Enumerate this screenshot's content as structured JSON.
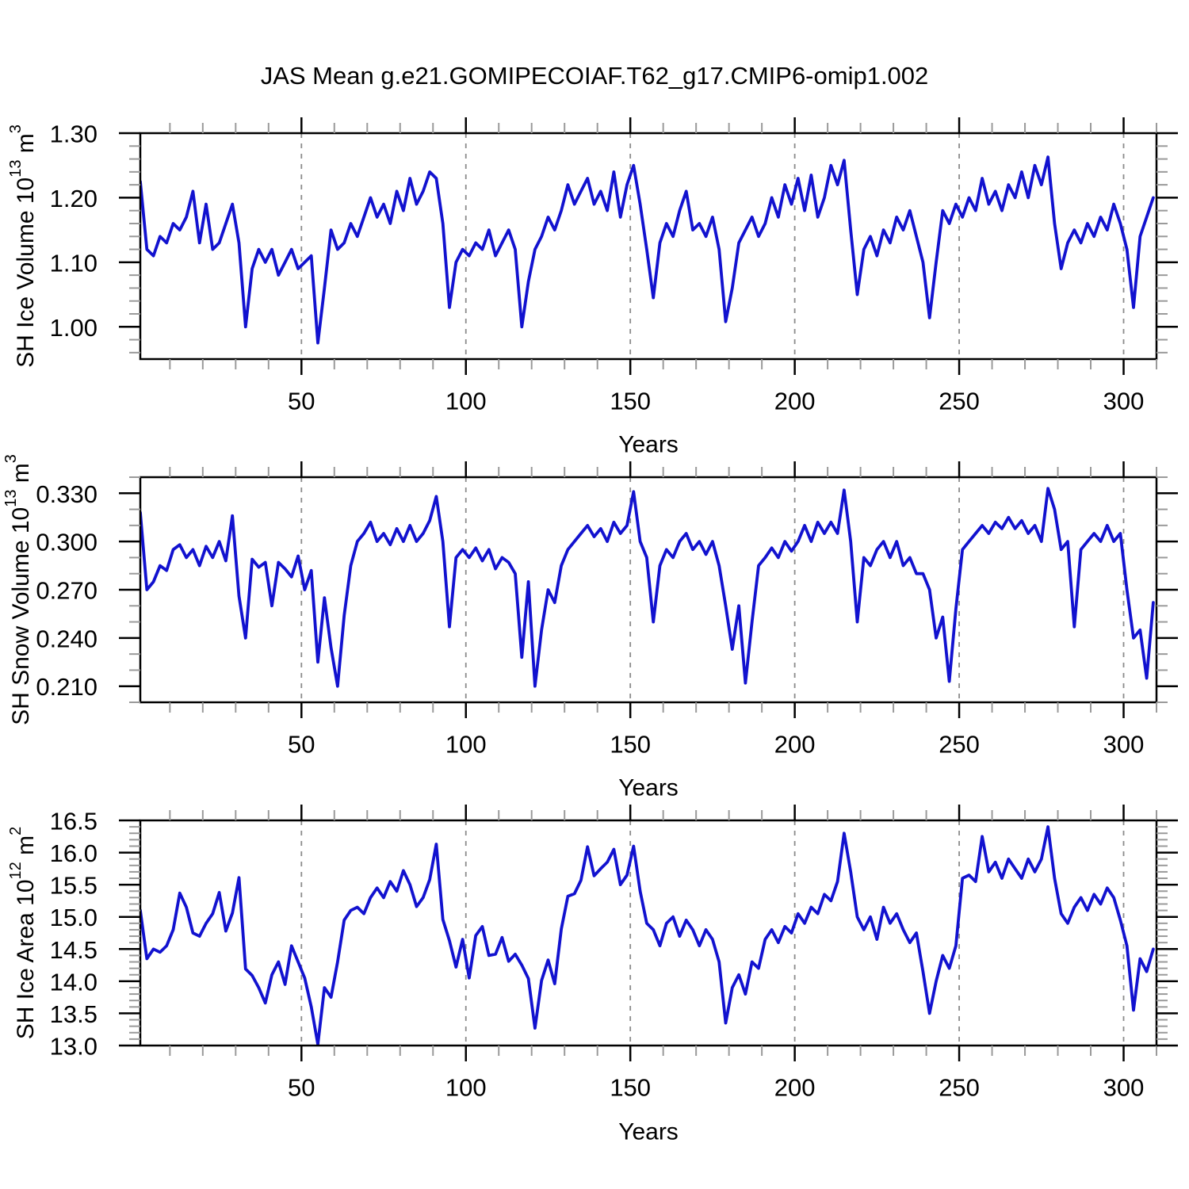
{
  "title": "JAS Mean g.e21.GOMIPECOIAF.T62_g17.CMIP6-omip1.002",
  "colors": {
    "line": "#1212CF",
    "frame": "#000000",
    "grid": "#8b8b8b",
    "minor_tick": "#9a9a9a",
    "major_tick": "#000000",
    "text": "#000000",
    "background": "#ffffff"
  },
  "chart_data": [
    {
      "type": "line",
      "title": "",
      "ylabel": "SH Ice Volume 10^13 m^3",
      "ylabel_parts": [
        [
          "t",
          "SH Ice Volume 10"
        ],
        [
          "s",
          "13"
        ],
        [
          "t",
          " m"
        ],
        [
          "s",
          "3"
        ]
      ],
      "xlabel": "Years",
      "xlim": [
        1,
        310
      ],
      "ylim": [
        0.95,
        1.3
      ],
      "yticks": {
        "major": [
          1.0,
          1.1,
          1.2,
          1.3
        ],
        "labels": [
          "1.00",
          "1.10",
          "1.20",
          "1.30"
        ],
        "minor_step": 0.02
      },
      "xticks": {
        "major": [
          50,
          100,
          150,
          200,
          250,
          300
        ],
        "labels": [
          "50",
          "100",
          "150",
          "200",
          "250",
          "300"
        ],
        "minor_step": 10
      },
      "grid": "vertical-dashed",
      "legend": "none",
      "x_start": 1,
      "x_step": 2,
      "values": [
        1.225,
        1.12,
        1.11,
        1.14,
        1.13,
        1.16,
        1.15,
        1.17,
        1.21,
        1.13,
        1.19,
        1.12,
        1.13,
        1.16,
        1.19,
        1.13,
        1.0,
        1.09,
        1.12,
        1.1,
        1.12,
        1.08,
        1.1,
        1.12,
        1.09,
        1.1,
        1.11,
        0.975,
        1.06,
        1.15,
        1.12,
        1.13,
        1.16,
        1.14,
        1.17,
        1.2,
        1.17,
        1.19,
        1.16,
        1.21,
        1.18,
        1.23,
        1.19,
        1.21,
        1.24,
        1.23,
        1.16,
        1.03,
        1.1,
        1.12,
        1.11,
        1.13,
        1.12,
        1.15,
        1.11,
        1.13,
        1.15,
        1.12,
        1.0,
        1.07,
        1.12,
        1.14,
        1.17,
        1.15,
        1.18,
        1.22,
        1.19,
        1.21,
        1.23,
        1.19,
        1.21,
        1.18,
        1.24,
        1.17,
        1.22,
        1.25,
        1.19,
        1.12,
        1.045,
        1.13,
        1.16,
        1.14,
        1.18,
        1.21,
        1.15,
        1.16,
        1.14,
        1.17,
        1.12,
        1.008,
        1.06,
        1.13,
        1.15,
        1.17,
        1.14,
        1.16,
        1.2,
        1.17,
        1.22,
        1.19,
        1.23,
        1.18,
        1.235,
        1.17,
        1.2,
        1.25,
        1.22,
        1.258,
        1.15,
        1.05,
        1.12,
        1.14,
        1.11,
        1.15,
        1.13,
        1.17,
        1.15,
        1.18,
        1.14,
        1.1,
        1.014,
        1.1,
        1.18,
        1.16,
        1.19,
        1.17,
        1.2,
        1.18,
        1.23,
        1.19,
        1.21,
        1.18,
        1.22,
        1.2,
        1.24,
        1.2,
        1.25,
        1.22,
        1.263,
        1.16,
        1.09,
        1.13,
        1.15,
        1.13,
        1.16,
        1.14,
        1.17,
        1.15,
        1.19,
        1.16,
        1.12,
        1.03,
        1.14,
        1.17,
        1.2
      ]
    },
    {
      "type": "line",
      "title": "",
      "ylabel": "SH Snow Volume 10^13 m^3",
      "ylabel_parts": [
        [
          "t",
          "SH Snow Volume 10"
        ],
        [
          "s",
          "13"
        ],
        [
          "t",
          " m"
        ],
        [
          "s",
          "3"
        ]
      ],
      "xlabel": "Years",
      "xlim": [
        1,
        310
      ],
      "ylim": [
        0.2,
        0.34
      ],
      "yticks": {
        "major": [
          0.21,
          0.24,
          0.27,
          0.3,
          0.33
        ],
        "labels": [
          "0.210",
          "0.240",
          "0.270",
          "0.300",
          "0.330"
        ],
        "minor_step": 0.01
      },
      "xticks": {
        "major": [
          50,
          100,
          150,
          200,
          250,
          300
        ],
        "labels": [
          "50",
          "100",
          "150",
          "200",
          "250",
          "300"
        ],
        "minor_step": 10
      },
      "grid": "vertical-dashed",
      "legend": "none",
      "x_start": 1,
      "x_step": 2,
      "values": [
        0.318,
        0.27,
        0.275,
        0.285,
        0.282,
        0.295,
        0.298,
        0.29,
        0.295,
        0.285,
        0.297,
        0.29,
        0.3,
        0.288,
        0.316,
        0.266,
        0.24,
        0.289,
        0.284,
        0.287,
        0.26,
        0.287,
        0.283,
        0.278,
        0.291,
        0.27,
        0.282,
        0.225,
        0.265,
        0.234,
        0.21,
        0.254,
        0.285,
        0.3,
        0.305,
        0.312,
        0.3,
        0.305,
        0.298,
        0.308,
        0.3,
        0.31,
        0.3,
        0.305,
        0.313,
        0.328,
        0.3,
        0.247,
        0.29,
        0.295,
        0.29,
        0.296,
        0.288,
        0.295,
        0.283,
        0.29,
        0.287,
        0.28,
        0.228,
        0.275,
        0.21,
        0.245,
        0.27,
        0.262,
        0.285,
        0.295,
        0.3,
        0.305,
        0.31,
        0.303,
        0.308,
        0.3,
        0.312,
        0.305,
        0.31,
        0.331,
        0.3,
        0.29,
        0.25,
        0.285,
        0.295,
        0.29,
        0.3,
        0.305,
        0.295,
        0.3,
        0.292,
        0.3,
        0.285,
        0.26,
        0.233,
        0.26,
        0.212,
        0.25,
        0.285,
        0.29,
        0.296,
        0.29,
        0.3,
        0.294,
        0.3,
        0.31,
        0.3,
        0.312,
        0.305,
        0.312,
        0.305,
        0.332,
        0.3,
        0.25,
        0.29,
        0.285,
        0.295,
        0.3,
        0.29,
        0.3,
        0.285,
        0.29,
        0.28,
        0.28,
        0.27,
        0.24,
        0.253,
        0.213,
        0.258,
        0.295,
        0.3,
        0.305,
        0.31,
        0.305,
        0.312,
        0.308,
        0.315,
        0.308,
        0.313,
        0.305,
        0.31,
        0.3,
        0.333,
        0.32,
        0.295,
        0.3,
        0.247,
        0.295,
        0.3,
        0.305,
        0.3,
        0.31,
        0.3,
        0.305,
        0.27,
        0.24,
        0.245,
        0.215,
        0.262
      ]
    },
    {
      "type": "line",
      "title": "",
      "ylabel": "SH Ice Area 10^12 m^2",
      "ylabel_parts": [
        [
          "t",
          "SH Ice Area 10"
        ],
        [
          "s",
          "12"
        ],
        [
          "t",
          " m"
        ],
        [
          "s",
          "2"
        ]
      ],
      "xlabel": "Years",
      "xlim": [
        1,
        310
      ],
      "ylim": [
        13.0,
        16.5
      ],
      "yticks": {
        "major": [
          13.0,
          13.5,
          14.0,
          14.5,
          15.0,
          15.5,
          16.0,
          16.5
        ],
        "labels": [
          "13.0",
          "13.5",
          "14.0",
          "14.5",
          "15.0",
          "15.5",
          "16.0",
          "16.5"
        ],
        "minor_step": 0.1
      },
      "xticks": {
        "major": [
          50,
          100,
          150,
          200,
          250,
          300
        ],
        "labels": [
          "50",
          "100",
          "150",
          "200",
          "250",
          "300"
        ],
        "minor_step": 10
      },
      "grid": "vertical-dashed",
      "legend": "none",
      "x_start": 1,
      "x_step": 2,
      "values": [
        15.1,
        14.35,
        14.5,
        14.45,
        14.55,
        14.8,
        15.37,
        15.15,
        14.75,
        14.7,
        14.9,
        15.05,
        15.38,
        14.78,
        15.06,
        15.61,
        14.19,
        14.09,
        13.9,
        13.66,
        14.1,
        14.3,
        13.95,
        14.55,
        14.3,
        14.05,
        13.6,
        13.02,
        13.9,
        13.75,
        14.3,
        14.95,
        15.1,
        15.15,
        15.05,
        15.3,
        15.45,
        15.3,
        15.55,
        15.4,
        15.72,
        15.5,
        15.16,
        15.3,
        15.58,
        16.13,
        14.96,
        14.63,
        14.22,
        14.65,
        14.05,
        14.71,
        14.85,
        14.4,
        14.42,
        14.68,
        14.31,
        14.42,
        14.25,
        14.04,
        13.27,
        14.01,
        14.33,
        13.96,
        14.81,
        15.32,
        15.36,
        15.57,
        16.09,
        15.64,
        15.75,
        15.85,
        16.05,
        15.5,
        15.65,
        16.1,
        15.4,
        14.9,
        14.8,
        14.55,
        14.9,
        15.0,
        14.7,
        14.95,
        14.8,
        14.55,
        14.8,
        14.65,
        14.3,
        13.35,
        13.9,
        14.1,
        13.8,
        14.3,
        14.2,
        14.65,
        14.8,
        14.6,
        14.85,
        14.75,
        15.05,
        14.9,
        15.15,
        15.05,
        15.35,
        15.25,
        15.55,
        16.3,
        15.7,
        15.0,
        14.8,
        15.0,
        14.65,
        15.15,
        14.9,
        15.05,
        14.8,
        14.6,
        14.75,
        14.15,
        13.5,
        14.0,
        14.4,
        14.2,
        14.55,
        15.6,
        15.65,
        15.55,
        16.25,
        15.7,
        15.85,
        15.6,
        15.9,
        15.75,
        15.6,
        15.9,
        15.7,
        15.9,
        16.4,
        15.6,
        15.05,
        14.9,
        15.15,
        15.3,
        15.1,
        15.35,
        15.2,
        15.45,
        15.3,
        14.95,
        14.55,
        13.55,
        14.35,
        14.15,
        14.5
      ]
    }
  ]
}
